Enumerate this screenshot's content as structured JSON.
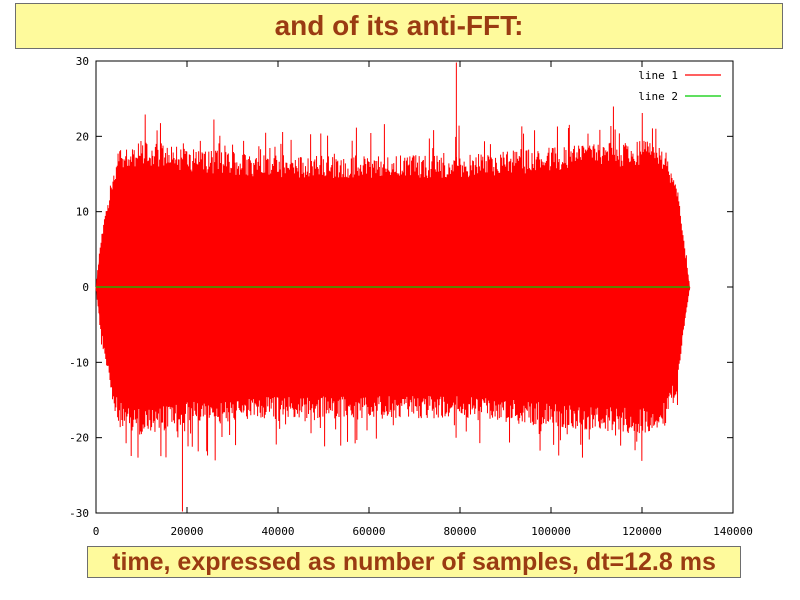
{
  "slide": {
    "title": "and of its anti-FFT:",
    "caption": "time, expressed as number of samples, dt=12.8 ms"
  },
  "colors": {
    "title_text": "#9a3b12",
    "box_fill": "#fefa9c",
    "line1": "#ff0000",
    "line2": "#00cc00"
  },
  "chart_data": {
    "type": "line",
    "title": "",
    "xlabel": "",
    "ylabel": "",
    "xlim": [
      0,
      140000
    ],
    "ylim": [
      -30,
      30
    ],
    "x_ticks": [
      0,
      20000,
      40000,
      60000,
      80000,
      100000,
      120000,
      140000
    ],
    "y_ticks": [
      -30,
      -20,
      -10,
      0,
      10,
      20,
      30
    ],
    "x_tick_labels": [
      "0",
      "20000",
      "40000",
      "60000",
      "80000",
      "100000",
      "120000",
      "140000"
    ],
    "y_tick_labels": [
      "-30",
      "-20",
      "-10",
      "0",
      "10",
      "20",
      "30"
    ],
    "grid": false,
    "legend_position": "top-right",
    "series": [
      {
        "name": "line 1",
        "color": "#ff0000",
        "description": "dense oscillating signal",
        "envelope": {
          "x": [
            0,
            1000,
            3000,
            5000,
            10000,
            20000,
            40000,
            60000,
            80000,
            100000,
            120000,
            125000,
            127500,
            129000,
            130500
          ],
          "upper": [
            0,
            6,
            13,
            18,
            19,
            18,
            17,
            17,
            17,
            18,
            19,
            18,
            14,
            7,
            0
          ],
          "lower": [
            0,
            -6,
            -13,
            -18,
            -19,
            -18,
            -17,
            -17,
            -17,
            -18,
            -19,
            -18,
            -14,
            -7,
            0
          ]
        },
        "spikes": [
          {
            "x": 79200,
            "y": 29.8
          },
          {
            "x": 19000,
            "y": -29.8
          }
        ]
      },
      {
        "name": "line 2",
        "color": "#00cc00",
        "x": [
          0,
          130500
        ],
        "values": [
          0,
          0
        ]
      }
    ]
  }
}
